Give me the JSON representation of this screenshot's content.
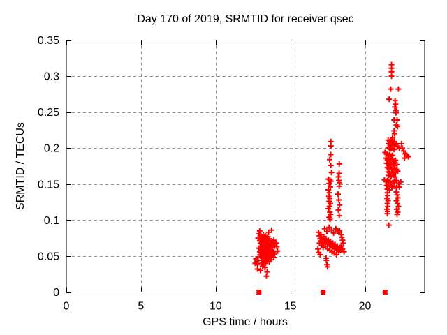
{
  "chart_data": {
    "type": "scatter",
    "title": "Day 170 of 2019, SRMTID for receiver qsec",
    "xlabel": "GPS time / hours",
    "ylabel": "SRMTID / TECUs",
    "xlim": [
      0,
      24
    ],
    "ylim": [
      0,
      0.35
    ],
    "xticks": [
      0,
      5,
      10,
      15,
      20
    ],
    "xtick_labels": [
      "0",
      "5",
      "10",
      "15",
      "20"
    ],
    "yticks": [
      0,
      0.05,
      0.1,
      0.15,
      0.2,
      0.25,
      0.3,
      0.35
    ],
    "ytick_labels": [
      "0",
      "0.05",
      "0.1",
      "0.15",
      "0.2",
      "0.25",
      "0.3",
      "0.35"
    ],
    "grid": "dashed-at-major-ticks",
    "grid_color": "#8c8c8c",
    "legend": "none",
    "background": "#ffffff",
    "series": [
      {
        "name": "srmtid-values",
        "marker": "plus",
        "color": "#ff0000",
        "points": [
          [
            12.95,
            0.085
          ],
          [
            13.75,
            0.086
          ],
          [
            13.55,
            0.083
          ],
          [
            12.9,
            0.081
          ],
          [
            13.0,
            0.079
          ],
          [
            13.2,
            0.08
          ],
          [
            13.1,
            0.077
          ],
          [
            13.35,
            0.078
          ],
          [
            13.5,
            0.077
          ],
          [
            12.85,
            0.075
          ],
          [
            13.05,
            0.074
          ],
          [
            13.25,
            0.075
          ],
          [
            13.45,
            0.073
          ],
          [
            13.6,
            0.074
          ],
          [
            13.9,
            0.072
          ],
          [
            12.95,
            0.071
          ],
          [
            13.15,
            0.072
          ],
          [
            13.3,
            0.07
          ],
          [
            13.5,
            0.071
          ],
          [
            13.7,
            0.069
          ],
          [
            13.85,
            0.07
          ],
          [
            14.05,
            0.068
          ],
          [
            13.0,
            0.068
          ],
          [
            13.1,
            0.067
          ],
          [
            13.2,
            0.068
          ],
          [
            13.35,
            0.066
          ],
          [
            13.45,
            0.067
          ],
          [
            13.6,
            0.065
          ],
          [
            13.75,
            0.066
          ],
          [
            13.95,
            0.064
          ],
          [
            13.05,
            0.064
          ],
          [
            13.15,
            0.063
          ],
          [
            13.3,
            0.064
          ],
          [
            13.4,
            0.062
          ],
          [
            13.55,
            0.063
          ],
          [
            13.65,
            0.061
          ],
          [
            13.8,
            0.062
          ],
          [
            14.1,
            0.063
          ],
          [
            12.9,
            0.061
          ],
          [
            13.0,
            0.06
          ],
          [
            13.1,
            0.059
          ],
          [
            13.25,
            0.06
          ],
          [
            13.35,
            0.058
          ],
          [
            13.5,
            0.059
          ],
          [
            13.6,
            0.057
          ],
          [
            13.7,
            0.058
          ],
          [
            13.9,
            0.056
          ],
          [
            14.15,
            0.057
          ],
          [
            12.95,
            0.056
          ],
          [
            13.05,
            0.055
          ],
          [
            13.2,
            0.056
          ],
          [
            13.3,
            0.054
          ],
          [
            13.4,
            0.055
          ],
          [
            13.55,
            0.053
          ],
          [
            13.65,
            0.054
          ],
          [
            13.8,
            0.052
          ],
          [
            13.95,
            0.053
          ],
          [
            13.0,
            0.052
          ],
          [
            13.1,
            0.051
          ],
          [
            13.25,
            0.052
          ],
          [
            13.35,
            0.05
          ],
          [
            13.5,
            0.051
          ],
          [
            13.6,
            0.049
          ],
          [
            13.75,
            0.05
          ],
          [
            13.9,
            0.048
          ],
          [
            12.85,
            0.049
          ],
          [
            13.05,
            0.048
          ],
          [
            13.15,
            0.047
          ],
          [
            13.3,
            0.048
          ],
          [
            13.45,
            0.046
          ],
          [
            13.55,
            0.047
          ],
          [
            13.7,
            0.045
          ],
          [
            12.7,
            0.046
          ],
          [
            12.75,
            0.043
          ],
          [
            13.1,
            0.044
          ],
          [
            13.25,
            0.043
          ],
          [
            13.4,
            0.044
          ],
          [
            13.6,
            0.042
          ],
          [
            12.65,
            0.04
          ],
          [
            12.8,
            0.038
          ],
          [
            13.05,
            0.04
          ],
          [
            13.2,
            0.039
          ],
          [
            13.35,
            0.04
          ],
          [
            13.15,
            0.036
          ],
          [
            13.3,
            0.034
          ],
          [
            12.8,
            0.032
          ],
          [
            13.0,
            0.03
          ],
          [
            13.45,
            0.028
          ],
          [
            13.4,
            0.022
          ],
          [
            17.72,
            0.209
          ],
          [
            17.72,
            0.203
          ],
          [
            17.71,
            0.191
          ],
          [
            17.64,
            0.184
          ],
          [
            17.72,
            0.176
          ],
          [
            18.28,
            0.178
          ],
          [
            17.76,
            0.166
          ],
          [
            18.27,
            0.165
          ],
          [
            18.22,
            0.16
          ],
          [
            17.55,
            0.157
          ],
          [
            17.65,
            0.156
          ],
          [
            17.72,
            0.154
          ],
          [
            18.25,
            0.155
          ],
          [
            18.3,
            0.152
          ],
          [
            17.6,
            0.151
          ],
          [
            18.28,
            0.147
          ],
          [
            17.68,
            0.146
          ],
          [
            17.55,
            0.142
          ],
          [
            17.62,
            0.138
          ],
          [
            18.2,
            0.136
          ],
          [
            17.58,
            0.133
          ],
          [
            17.65,
            0.13
          ],
          [
            18.25,
            0.128
          ],
          [
            17.6,
            0.126
          ],
          [
            17.68,
            0.123
          ],
          [
            18.3,
            0.121
          ],
          [
            17.62,
            0.119
          ],
          [
            17.55,
            0.116
          ],
          [
            18.22,
            0.114
          ],
          [
            17.65,
            0.111
          ],
          [
            17.7,
            0.108
          ],
          [
            18.28,
            0.106
          ],
          [
            17.6,
            0.104
          ],
          [
            17.66,
            0.101
          ],
          [
            16.9,
            0.083
          ],
          [
            16.95,
            0.078
          ],
          [
            17.0,
            0.074
          ],
          [
            17.05,
            0.08
          ],
          [
            17.1,
            0.076
          ],
          [
            17.05,
            0.071
          ],
          [
            16.95,
            0.068
          ],
          [
            17.15,
            0.073
          ],
          [
            17.2,
            0.069
          ],
          [
            17.1,
            0.065
          ],
          [
            17.25,
            0.077
          ],
          [
            17.3,
            0.072
          ],
          [
            17.2,
            0.062
          ],
          [
            17.35,
            0.067
          ],
          [
            17.4,
            0.074
          ],
          [
            17.45,
            0.07
          ],
          [
            17.35,
            0.063
          ],
          [
            17.5,
            0.066
          ],
          [
            17.55,
            0.072
          ],
          [
            17.6,
            0.068
          ],
          [
            17.5,
            0.06
          ],
          [
            17.65,
            0.064
          ],
          [
            17.7,
            0.07
          ],
          [
            17.75,
            0.066
          ],
          [
            17.65,
            0.058
          ],
          [
            17.8,
            0.062
          ],
          [
            17.85,
            0.068
          ],
          [
            17.9,
            0.064
          ],
          [
            17.8,
            0.056
          ],
          [
            17.95,
            0.06
          ],
          [
            18.0,
            0.066
          ],
          [
            18.05,
            0.062
          ],
          [
            17.95,
            0.054
          ],
          [
            18.1,
            0.058
          ],
          [
            18.15,
            0.064
          ],
          [
            18.2,
            0.06
          ],
          [
            18.1,
            0.052
          ],
          [
            18.25,
            0.056
          ],
          [
            18.3,
            0.062
          ],
          [
            18.35,
            0.058
          ],
          [
            18.3,
            0.085
          ],
          [
            18.4,
            0.08
          ],
          [
            18.45,
            0.076
          ],
          [
            18.5,
            0.072
          ],
          [
            18.55,
            0.068
          ],
          [
            18.4,
            0.064
          ],
          [
            18.5,
            0.06
          ],
          [
            18.6,
            0.056
          ],
          [
            17.3,
            0.088
          ],
          [
            17.45,
            0.084
          ],
          [
            17.6,
            0.09
          ],
          [
            17.75,
            0.086
          ],
          [
            17.9,
            0.082
          ],
          [
            18.05,
            0.088
          ],
          [
            18.2,
            0.084
          ],
          [
            16.85,
            0.06
          ],
          [
            16.9,
            0.055
          ],
          [
            17.0,
            0.052
          ],
          [
            17.4,
            0.047
          ],
          [
            17.42,
            0.044
          ],
          [
            17.45,
            0.038
          ],
          [
            17.5,
            0.035
          ],
          [
            21.78,
            0.316
          ],
          [
            21.78,
            0.311
          ],
          [
            21.78,
            0.306
          ],
          [
            21.78,
            0.3
          ],
          [
            21.73,
            0.282
          ],
          [
            22.24,
            0.282
          ],
          [
            21.62,
            0.268
          ],
          [
            22.02,
            0.266
          ],
          [
            22.05,
            0.261
          ],
          [
            22.0,
            0.257
          ],
          [
            22.08,
            0.252
          ],
          [
            22.08,
            0.249
          ],
          [
            21.95,
            0.239
          ],
          [
            22.15,
            0.239
          ],
          [
            22.1,
            0.232
          ],
          [
            22.18,
            0.23
          ],
          [
            21.95,
            0.224
          ],
          [
            21.98,
            0.22
          ],
          [
            21.85,
            0.214
          ],
          [
            21.55,
            0.211
          ],
          [
            21.65,
            0.209
          ],
          [
            21.75,
            0.21
          ],
          [
            21.85,
            0.208
          ],
          [
            21.95,
            0.209
          ],
          [
            21.6,
            0.206
          ],
          [
            21.7,
            0.204
          ],
          [
            21.8,
            0.205
          ],
          [
            21.9,
            0.203
          ],
          [
            22.0,
            0.204
          ],
          [
            22.1,
            0.206
          ],
          [
            21.55,
            0.201
          ],
          [
            21.65,
            0.2
          ],
          [
            21.75,
            0.199
          ],
          [
            21.85,
            0.2
          ],
          [
            21.95,
            0.198
          ],
          [
            22.2,
            0.202
          ],
          [
            22.3,
            0.2
          ],
          [
            22.45,
            0.206
          ],
          [
            22.5,
            0.2
          ],
          [
            22.6,
            0.196
          ],
          [
            22.7,
            0.192
          ],
          [
            22.8,
            0.19
          ],
          [
            22.9,
            0.188
          ],
          [
            22.65,
            0.186
          ],
          [
            21.35,
            0.194
          ],
          [
            21.45,
            0.192
          ],
          [
            21.55,
            0.19
          ],
          [
            21.65,
            0.191
          ],
          [
            21.75,
            0.189
          ],
          [
            21.85,
            0.19
          ],
          [
            21.4,
            0.186
          ],
          [
            21.5,
            0.184
          ],
          [
            21.6,
            0.185
          ],
          [
            21.7,
            0.183
          ],
          [
            21.8,
            0.184
          ],
          [
            21.95,
            0.182
          ],
          [
            22.05,
            0.183
          ],
          [
            21.45,
            0.179
          ],
          [
            21.55,
            0.178
          ],
          [
            21.65,
            0.179
          ],
          [
            21.75,
            0.177
          ],
          [
            21.9,
            0.178
          ],
          [
            22.0,
            0.176
          ],
          [
            22.15,
            0.177
          ],
          [
            21.5,
            0.173
          ],
          [
            21.6,
            0.172
          ],
          [
            21.7,
            0.173
          ],
          [
            21.85,
            0.171
          ],
          [
            21.95,
            0.172
          ],
          [
            22.1,
            0.17
          ],
          [
            21.55,
            0.167
          ],
          [
            21.65,
            0.166
          ],
          [
            21.8,
            0.167
          ],
          [
            21.9,
            0.165
          ],
          [
            22.05,
            0.166
          ],
          [
            22.2,
            0.168
          ],
          [
            21.6,
            0.162
          ],
          [
            21.75,
            0.161
          ],
          [
            21.9,
            0.162
          ],
          [
            22.0,
            0.16
          ],
          [
            21.3,
            0.156
          ],
          [
            21.4,
            0.154
          ],
          [
            21.5,
            0.155
          ],
          [
            21.6,
            0.153
          ],
          [
            21.7,
            0.154
          ],
          [
            21.85,
            0.152
          ],
          [
            21.95,
            0.153
          ],
          [
            22.1,
            0.155
          ],
          [
            22.25,
            0.151
          ],
          [
            22.4,
            0.153
          ],
          [
            21.45,
            0.148
          ],
          [
            21.55,
            0.147
          ],
          [
            21.7,
            0.148
          ],
          [
            21.8,
            0.146
          ],
          [
            21.95,
            0.147
          ],
          [
            22.1,
            0.145
          ],
          [
            22.3,
            0.146
          ],
          [
            21.5,
            0.143
          ],
          [
            21.65,
            0.142
          ],
          [
            21.5,
            0.138
          ],
          [
            21.52,
            0.134
          ],
          [
            21.48,
            0.13
          ],
          [
            21.55,
            0.127
          ],
          [
            21.5,
            0.123
          ],
          [
            21.53,
            0.119
          ],
          [
            21.47,
            0.115
          ],
          [
            21.52,
            0.112
          ],
          [
            21.5,
            0.109
          ],
          [
            22.1,
            0.139
          ],
          [
            22.15,
            0.135
          ],
          [
            22.2,
            0.131
          ],
          [
            22.1,
            0.127
          ],
          [
            22.18,
            0.123
          ],
          [
            22.25,
            0.119
          ],
          [
            22.12,
            0.115
          ],
          [
            22.2,
            0.111
          ],
          [
            22.15,
            0.108
          ],
          [
            21.6,
            0.093
          ]
        ]
      },
      {
        "name": "x-axis-event-squares",
        "marker": "filled-square",
        "color": "#ff0000",
        "points": [
          [
            12.9,
            0
          ],
          [
            17.2,
            0
          ],
          [
            21.35,
            0
          ]
        ]
      }
    ]
  }
}
